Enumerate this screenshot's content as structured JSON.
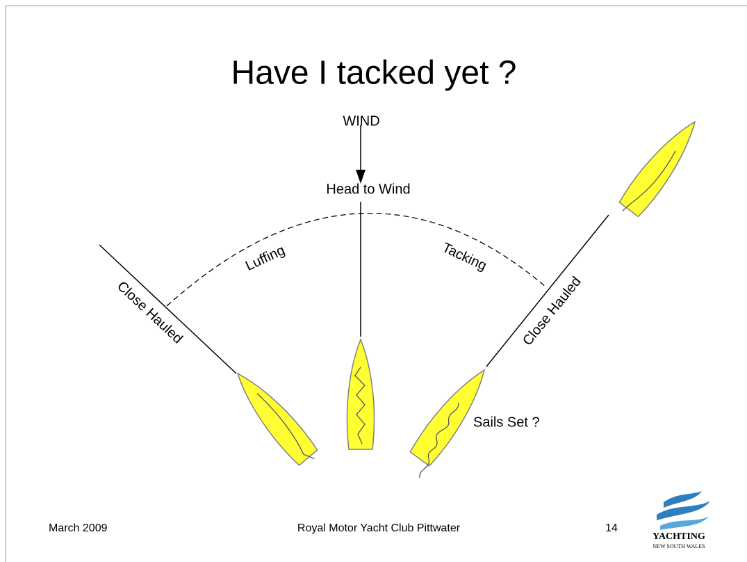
{
  "title": "Have I tacked yet ?",
  "diagram": {
    "wind": "WIND",
    "head_to_wind": "Head to Wind",
    "luffing": "Luffing",
    "tacking": "Tacking",
    "close_hauled_left": "Close Hauled",
    "close_hauled_right": "Close Hauled",
    "sails_set": "Sails Set ?"
  },
  "footer": {
    "date": "March 2009",
    "club": "Royal Motor Yacht Club Pittwater",
    "page": "14"
  },
  "logo": {
    "name": "YACHTING",
    "region": "NEW SOUTH WALES"
  }
}
